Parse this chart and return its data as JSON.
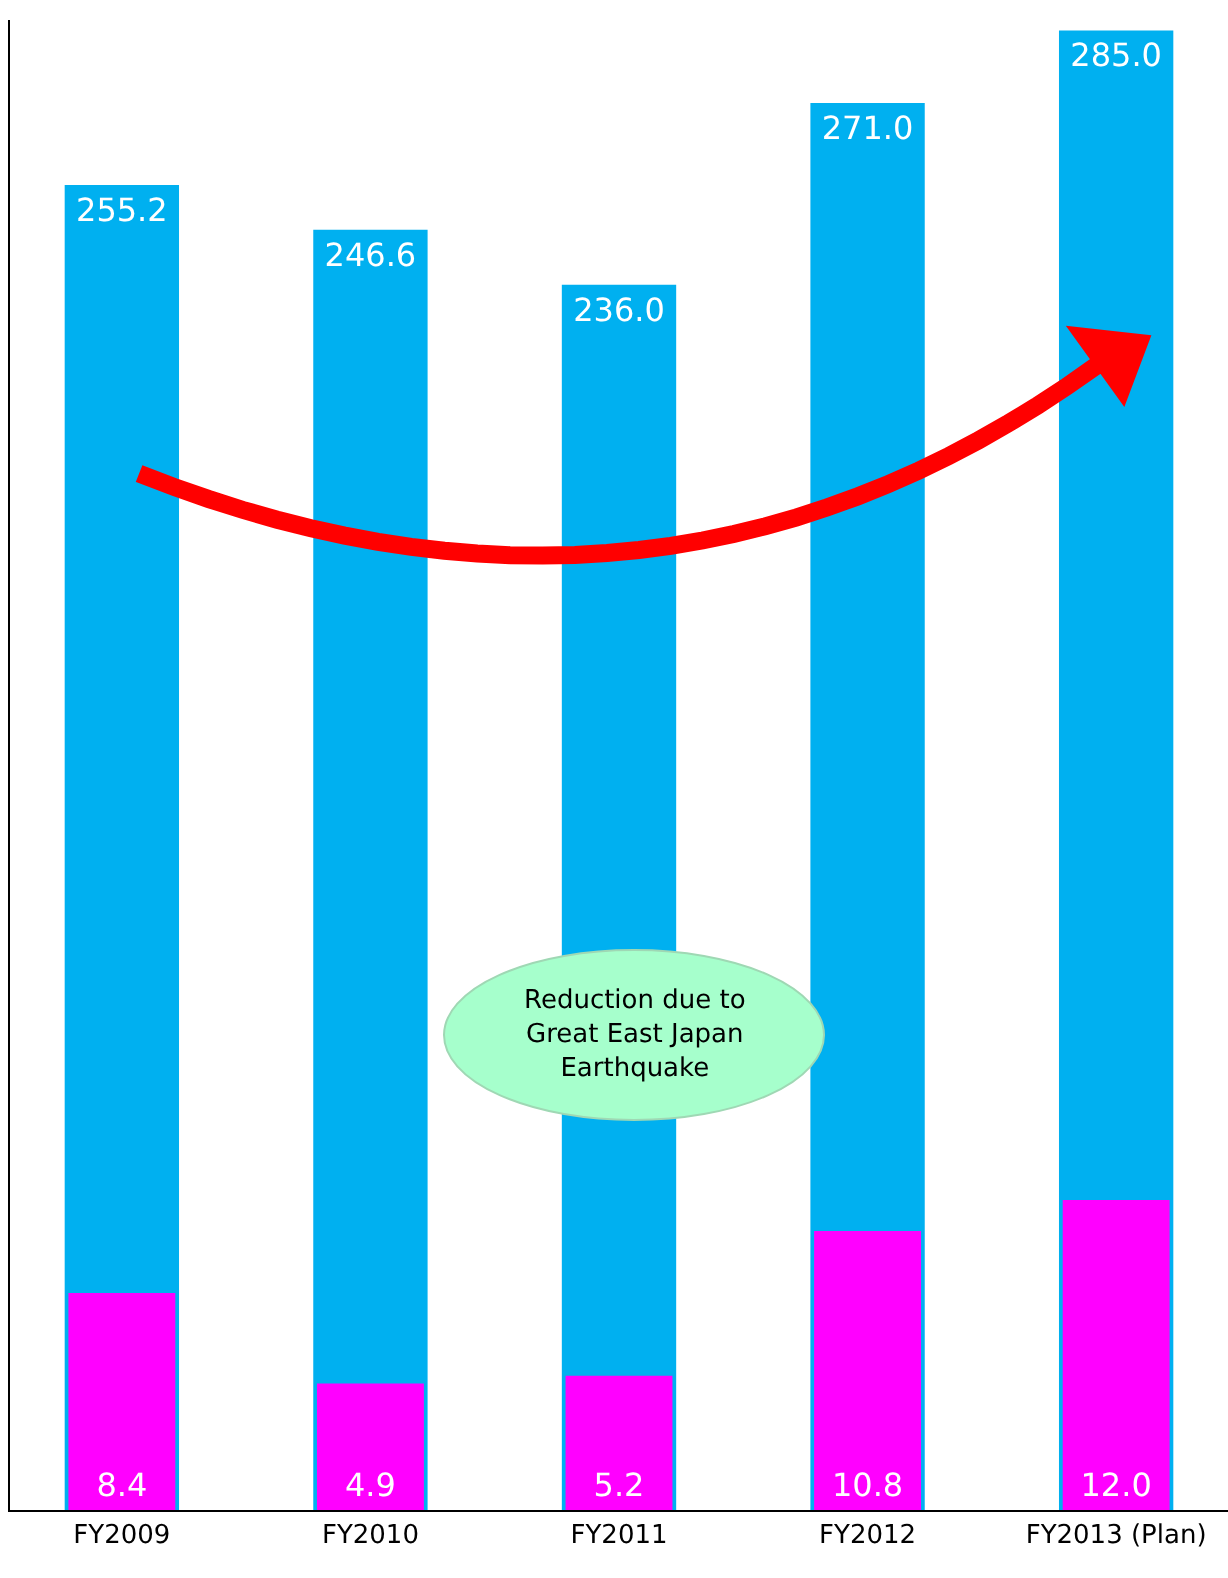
{
  "chart_data": {
    "type": "bar",
    "categories": [
      "FY2009",
      "FY2010",
      "FY2011",
      "FY2012",
      "FY2013 (Plan)"
    ],
    "series": [
      {
        "color": "#00b0f0",
        "values": [
          255.2,
          246.6,
          236.0,
          271.0,
          285.0
        ],
        "value_labels": [
          "255.2",
          "246.6",
          "236.0",
          "271.0",
          "285.0"
        ]
      },
      {
        "color": "#ff00ff",
        "values": [
          8.4,
          4.9,
          5.2,
          10.8,
          12.0
        ],
        "value_labels": [
          "8.4",
          "4.9",
          "5.2",
          "10.8",
          "12.0"
        ],
        "axis": "y2"
      }
    ],
    "ylim": [
      0,
      287
    ],
    "y2lim": [
      0,
      57.7
    ],
    "tick_labels": "x",
    "annotations": [
      "Reduction due to Great East Japan Earthquake"
    ]
  }
}
